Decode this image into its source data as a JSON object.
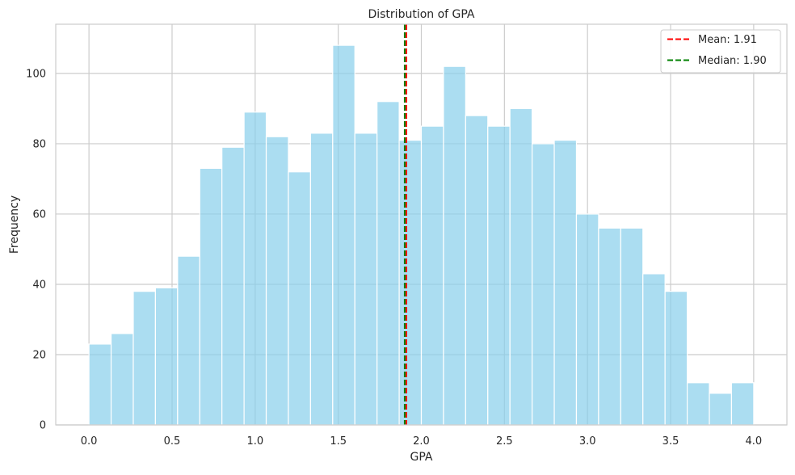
{
  "chart_data": {
    "type": "bar",
    "title": "Distribution of GPA",
    "xlabel": "GPA",
    "ylabel": "Frequency",
    "xlim": [
      -0.2,
      4.2
    ],
    "ylim": [
      0,
      114
    ],
    "grid": true,
    "legend_position": "top-right",
    "bins": {
      "start": 0.0,
      "end": 4.0,
      "count": 30,
      "values": [
        23,
        26,
        38,
        39,
        48,
        73,
        79,
        89,
        82,
        72,
        83,
        108,
        83,
        92,
        81,
        85,
        102,
        88,
        85,
        90,
        80,
        81,
        60,
        56,
        56,
        43,
        38,
        12,
        9,
        12
      ]
    },
    "x_ticks": [
      "0.0",
      "0.5",
      "1.0",
      "1.5",
      "2.0",
      "2.5",
      "3.0",
      "3.5",
      "4.0"
    ],
    "x_tick_values": [
      0.0,
      0.5,
      1.0,
      1.5,
      2.0,
      2.5,
      3.0,
      3.5,
      4.0
    ],
    "y_ticks": [
      "0",
      "20",
      "40",
      "60",
      "80",
      "100"
    ],
    "y_tick_values": [
      0,
      20,
      40,
      60,
      80,
      100
    ],
    "lines": [
      {
        "label": "Mean: 1.91",
        "x": 1.91,
        "color": "#ff0000",
        "style": "dashed"
      },
      {
        "label": "Median: 1.90",
        "x": 1.9,
        "color": "#008000",
        "style": "dashed"
      }
    ],
    "bar_color": "#87ceeb"
  }
}
